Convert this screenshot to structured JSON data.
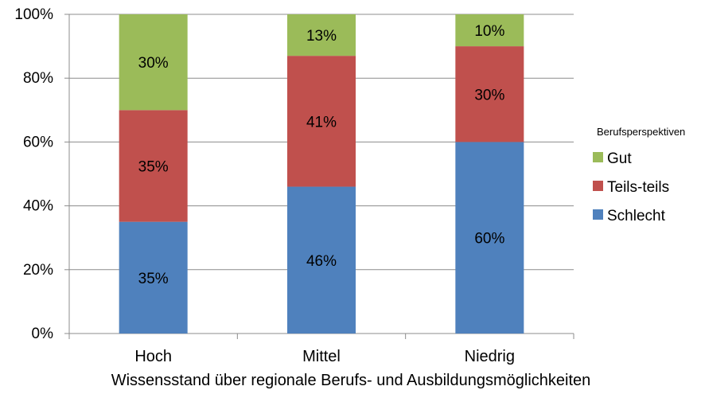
{
  "chart_data": {
    "type": "bar",
    "stacked": true,
    "percent_stacked": true,
    "categories": [
      "Hoch",
      "Mittel",
      "Niedrig"
    ],
    "series": [
      {
        "name": "Schlecht",
        "values": [
          35,
          46,
          60
        ],
        "color": "#4F81BD"
      },
      {
        "name": "Teils-teils",
        "values": [
          35,
          41,
          30
        ],
        "color": "#C0504D"
      },
      {
        "name": "Gut",
        "values": [
          30,
          13,
          10
        ],
        "color": "#9BBB59"
      }
    ],
    "legend_order": [
      "Gut",
      "Teils-teils",
      "Schlecht"
    ],
    "title": "",
    "xlabel": "Wissensstand über regionale Berufs- und Ausbildungsmöglichkeiten",
    "ylabel": "",
    "ylim": [
      0,
      100
    ],
    "yticks": [
      "0%",
      "20%",
      "40%",
      "60%",
      "80%",
      "100%"
    ],
    "ytick_values": [
      0,
      20,
      40,
      60,
      80,
      100
    ],
    "grid": true,
    "legend_title": "Berufsperspektiven",
    "legend_position": "right"
  }
}
